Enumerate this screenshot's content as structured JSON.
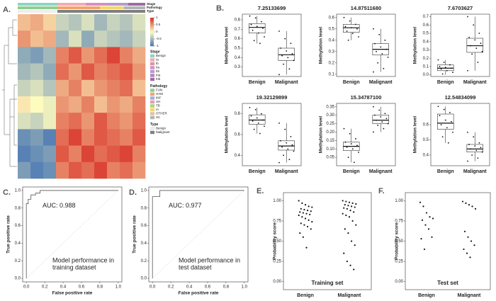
{
  "chart_data": [
    {
      "type": "heatmap",
      "panel_label": "A.",
      "matrix": [
        [
          0.3,
          0.4,
          0.2,
          -0.3,
          -0.4,
          -0.2,
          -0.5,
          -0.3,
          -0.4,
          -0.2
        ],
        [
          0.5,
          0.3,
          0.4,
          -0.5,
          -0.2,
          -0.6,
          -0.3,
          -0.4,
          -0.5,
          -0.3
        ],
        [
          -0.6,
          -0.7,
          -0.5,
          0.6,
          0.8,
          0.5,
          0.7,
          0.9,
          0.6,
          0.4
        ],
        [
          -0.5,
          -0.4,
          -0.6,
          0.7,
          0.5,
          0.8,
          0.6,
          0.7,
          0.8,
          0.5
        ],
        [
          -0.3,
          -0.2,
          -0.4,
          0.4,
          0.6,
          0.3,
          0.5,
          0.6,
          0.7,
          0.3
        ],
        [
          0.1,
          0.0,
          -0.1,
          0.5,
          0.4,
          0.6,
          0.3,
          0.5,
          0.4,
          0.6
        ],
        [
          -0.2,
          -0.3,
          -0.1,
          0.6,
          0.7,
          0.5,
          0.8,
          0.6,
          0.5,
          0.7
        ],
        [
          -0.8,
          -0.7,
          -0.9,
          0.7,
          0.9,
          0.6,
          0.8,
          0.7,
          0.6,
          0.8
        ],
        [
          -0.9,
          -0.8,
          -0.7,
          0.8,
          0.6,
          0.9,
          0.7,
          0.8,
          0.9,
          0.6
        ],
        [
          -0.7,
          -0.9,
          -0.8,
          0.6,
          0.8,
          0.7,
          0.9,
          0.6,
          0.7,
          0.5
        ]
      ],
      "clim": [
        -1,
        1
      ],
      "colormap": [
        "#4575b4",
        "#fefbbf",
        "#d73027"
      ],
      "colorbar_ticks": [
        1,
        0.5,
        0,
        -0.5,
        -1
      ],
      "legend": [
        {
          "title": "Stage",
          "items": [
            {
              "label": "Benign",
              "color": "#8dd3c7"
            },
            {
              "label": "Ia",
              "color": "#f4a8b8"
            },
            {
              "label": "Ib",
              "color": "#e88f9f"
            },
            {
              "label": "IIa",
              "color": "#d98ec4"
            },
            {
              "label": "IIb",
              "color": "#b59ad4"
            },
            {
              "label": "IIIa",
              "color": "#c07fb2"
            },
            {
              "label": "IIIb",
              "color": "#9e6aa8"
            }
          ]
        },
        {
          "title": "Pathology",
          "items": [
            {
              "label": "FUN",
              "color": "#8fcf8f"
            },
            {
              "label": "HAM",
              "color": "#f2a46b"
            },
            {
              "label": "INF",
              "color": "#9fb0d9"
            },
            {
              "label": "SH",
              "color": "#e59bc3"
            },
            {
              "label": "TB",
              "color": "#b3d46b"
            },
            {
              "label": "IA",
              "color": "#f5d66b"
            },
            {
              "label": "OTHER",
              "color": "#e5c494"
            },
            {
              "label": "SC",
              "color": "#b3b3b3"
            }
          ]
        },
        {
          "title": "Type",
          "items": [
            {
              "label": "Benign",
              "color": "#eeeeee"
            },
            {
              "label": "Malignant",
              "color": "#7f7f7f"
            }
          ]
        }
      ]
    },
    {
      "type": "box",
      "panel_label": "B.",
      "title": "7.25133699",
      "ylabel": "Methylation level",
      "categories": [
        "Benign",
        "Malignant"
      ],
      "boxes": [
        {
          "min": 0.55,
          "q1": 0.66,
          "median": 0.72,
          "q3": 0.76,
          "max": 0.84,
          "points": [
            0.84,
            0.82,
            0.78,
            0.75,
            0.73,
            0.71,
            0.69,
            0.66,
            0.62,
            0.58,
            0.55
          ]
        },
        {
          "min": 0.22,
          "q1": 0.37,
          "median": 0.43,
          "q3": 0.5,
          "max": 0.68,
          "points": [
            0.68,
            0.6,
            0.55,
            0.5,
            0.47,
            0.44,
            0.42,
            0.4,
            0.37,
            0.33,
            0.28,
            0.22
          ]
        }
      ],
      "ylim": [
        0.2,
        0.86
      ],
      "yticks": [
        0.3,
        0.4,
        0.5,
        0.6,
        0.7,
        0.8
      ]
    },
    {
      "type": "box",
      "title": "14.87511680",
      "ylabel": "Methylation level",
      "categories": [
        "Benign",
        "Malignant"
      ],
      "boxes": [
        {
          "min": 0.4,
          "q1": 0.47,
          "median": 0.51,
          "q3": 0.54,
          "max": 0.6,
          "points": [
            0.6,
            0.57,
            0.54,
            0.52,
            0.51,
            0.5,
            0.48,
            0.46,
            0.43,
            0.4
          ]
        },
        {
          "min": 0.12,
          "q1": 0.27,
          "median": 0.32,
          "q3": 0.37,
          "max": 0.5,
          "points": [
            0.5,
            0.45,
            0.4,
            0.37,
            0.34,
            0.32,
            0.3,
            0.28,
            0.25,
            0.2,
            0.15,
            0.12
          ]
        }
      ],
      "ylim": [
        0.08,
        0.63
      ],
      "yticks": [
        0.1,
        0.2,
        0.3,
        0.4,
        0.5,
        0.6
      ]
    },
    {
      "type": "box",
      "title": "7.6703627",
      "ylabel": "Methylation level",
      "categories": [
        "Benign",
        "Malignant"
      ],
      "boxes": [
        {
          "min": 0.0,
          "q1": 0.05,
          "median": 0.08,
          "q3": 0.12,
          "max": 0.18,
          "points": [
            0.18,
            0.15,
            0.12,
            0.1,
            0.09,
            0.08,
            0.07,
            0.05,
            0.03,
            0.01
          ]
        },
        {
          "min": 0.05,
          "q1": 0.27,
          "median": 0.35,
          "q3": 0.44,
          "max": 0.7,
          "points": [
            0.7,
            0.6,
            0.5,
            0.45,
            0.42,
            0.38,
            0.35,
            0.32,
            0.28,
            0.25,
            0.15,
            0.05
          ]
        }
      ],
      "ylim": [
        -0.02,
        0.73
      ],
      "yticks": [
        {
          "value": 0,
          "label": "0.0"
        },
        0.1,
        0.2,
        0.3,
        0.4,
        0.5,
        0.6,
        0.7
      ]
    },
    {
      "type": "box",
      "title": "19.32129899",
      "ylabel": "Methylation level",
      "categories": [
        "Benign",
        "Malignant"
      ],
      "boxes": [
        {
          "min": 0.61,
          "q1": 0.7,
          "median": 0.74,
          "q3": 0.79,
          "max": 0.86,
          "points": [
            0.86,
            0.84,
            0.8,
            0.78,
            0.76,
            0.74,
            0.73,
            0.71,
            0.68,
            0.65,
            0.61
          ]
        },
        {
          "min": 0.33,
          "q1": 0.45,
          "median": 0.49,
          "q3": 0.54,
          "max": 0.71,
          "points": [
            0.71,
            0.65,
            0.58,
            0.54,
            0.52,
            0.5,
            0.48,
            0.46,
            0.44,
            0.4,
            0.36,
            0.33
          ]
        }
      ],
      "ylim": [
        0.3,
        0.9
      ],
      "yticks": [
        0.4,
        0.6,
        0.8
      ]
    },
    {
      "type": "box",
      "title": "15.34787100",
      "ylabel": "Methylation level",
      "categories": [
        "Benign",
        "Malignant"
      ],
      "boxes": [
        {
          "min": 0.02,
          "q1": 0.09,
          "median": 0.115,
          "q3": 0.14,
          "max": 0.22,
          "points": [
            0.22,
            0.19,
            0.16,
            0.14,
            0.13,
            0.12,
            0.11,
            0.1,
            0.08,
            0.05,
            0.02
          ]
        },
        {
          "min": 0.2,
          "q1": 0.25,
          "median": 0.27,
          "q3": 0.3,
          "max": 0.35,
          "points": [
            0.35,
            0.33,
            0.31,
            0.3,
            0.29,
            0.28,
            0.27,
            0.26,
            0.25,
            0.24,
            0.22,
            0.2
          ]
        }
      ],
      "ylim": [
        0.0,
        0.37
      ],
      "yticks": [
        0.05,
        {
          "value": 0.1,
          "label": "0.10"
        },
        0.15,
        {
          "value": 0.2,
          "label": "0.20"
        },
        0.25,
        {
          "value": 0.3,
          "label": "0.30"
        },
        0.35
      ]
    },
    {
      "type": "box",
      "title": "12.54834099",
      "ylabel": "Methylation level",
      "categories": [
        "Benign",
        "Malignant"
      ],
      "boxes": [
        {
          "min": 0.48,
          "q1": 0.57,
          "median": 0.61,
          "q3": 0.67,
          "max": 0.72,
          "points": [
            0.72,
            0.7,
            0.68,
            0.66,
            0.63,
            0.62,
            0.6,
            0.58,
            0.55,
            0.52,
            0.48
          ]
        },
        {
          "min": 0.36,
          "q1": 0.42,
          "median": 0.44,
          "q3": 0.47,
          "max": 0.55,
          "points": [
            0.55,
            0.52,
            0.48,
            0.47,
            0.46,
            0.45,
            0.44,
            0.43,
            0.42,
            0.4,
            0.38,
            0.36
          ]
        }
      ],
      "ylim": [
        0.33,
        0.74
      ],
      "yticks": [
        0.4,
        0.5,
        0.6
      ]
    },
    {
      "type": "roc",
      "panel_label": "C.",
      "auc": "AUC: 0.988",
      "annotation": [
        "Model performance in",
        "training dataset"
      ],
      "x": [
        0,
        0,
        0.02,
        0.02,
        0.05,
        0.05,
        0.1,
        0.1,
        0.15,
        0.15,
        1
      ],
      "y": [
        0,
        0.85,
        0.85,
        0.9,
        0.9,
        0.95,
        0.95,
        0.97,
        0.97,
        1,
        1
      ],
      "xlim": [
        -0.04,
        1.04
      ],
      "ylim": [
        -0.04,
        1.04
      ],
      "xticks": [
        {
          "value": 0,
          "label": "0.0"
        },
        0.2,
        0.4,
        0.6,
        0.8,
        {
          "value": 1,
          "label": "1.0"
        }
      ],
      "yticks": [
        {
          "value": 0,
          "label": "0.0"
        },
        0.2,
        0.4,
        0.6,
        0.8,
        {
          "value": 1,
          "label": "1.0"
        }
      ],
      "xlabel": "False positive rate",
      "ylabel": "True positive rate"
    },
    {
      "type": "roc",
      "panel_label": "D.",
      "auc": "AUC: 0.977",
      "annotation": [
        "Model performance in",
        "test dataset"
      ],
      "x": [
        0,
        0,
        0.08,
        0.08,
        1
      ],
      "y": [
        0,
        0.93,
        0.93,
        1,
        1
      ],
      "xlim": [
        -0.04,
        1.04
      ],
      "ylim": [
        -0.04,
        1.04
      ],
      "xticks": [
        {
          "value": 0,
          "label": "0.0"
        },
        0.2,
        0.4,
        0.6,
        0.8,
        {
          "value": 1,
          "label": "1.0"
        }
      ],
      "yticks": [
        {
          "value": 0,
          "label": "0.0"
        },
        0.2,
        0.4,
        0.6,
        0.8,
        {
          "value": 1,
          "label": "1.0"
        }
      ],
      "xlabel": "False positive rate",
      "ylabel": "True positive rate"
    },
    {
      "type": "strip",
      "panel_label": "E.",
      "xlabel": "Training set",
      "ylabel": "Probability score",
      "categories": [
        "Benign",
        "Malignant"
      ],
      "values": [
        [
          1.0,
          0.97,
          0.95,
          0.93,
          0.92,
          0.9,
          0.89,
          0.88,
          0.87,
          0.86,
          0.85,
          0.84,
          0.83,
          0.82,
          0.8,
          0.78,
          0.76,
          0.74,
          0.72,
          0.7,
          0.68,
          0.65,
          0.6,
          0.55,
          0.42
        ],
        [
          1.0,
          0.99,
          0.98,
          0.97,
          0.96,
          0.95,
          0.94,
          0.93,
          0.92,
          0.91,
          0.9,
          0.88,
          0.86,
          0.84,
          0.82,
          0.8,
          0.75,
          0.7,
          0.65,
          0.6,
          0.5,
          0.45,
          0.35,
          0.25,
          0.2,
          0.15
        ]
      ],
      "ylim": [
        -0.1,
        1.1
      ],
      "yticks": [
        {
          "value": 0,
          "label": "0.00"
        },
        0.25,
        {
          "value": 0.5,
          "label": "0.50"
        },
        0.75,
        {
          "value": 1,
          "label": "1.00"
        }
      ]
    },
    {
      "type": "strip",
      "panel_label": "F.",
      "xlabel": "Test set",
      "ylabel": "Probability score",
      "categories": [
        "Benign",
        "Malignant"
      ],
      "values": [
        [
          0.98,
          0.93,
          0.85,
          0.8,
          0.78,
          0.76,
          0.7,
          0.65,
          0.55,
          0.53,
          0.4
        ],
        [
          0.99,
          0.97,
          0.95,
          0.93,
          0.9,
          0.62,
          0.55,
          0.5,
          0.45,
          0.4,
          0.35,
          0.3
        ]
      ],
      "ylim": [
        -0.1,
        1.1
      ],
      "yticks": [
        {
          "value": 0,
          "label": "0.00"
        },
        0.25,
        {
          "value": 0.5,
          "label": "0.50"
        },
        0.75,
        {
          "value": 1,
          "label": "1.00"
        }
      ]
    }
  ]
}
